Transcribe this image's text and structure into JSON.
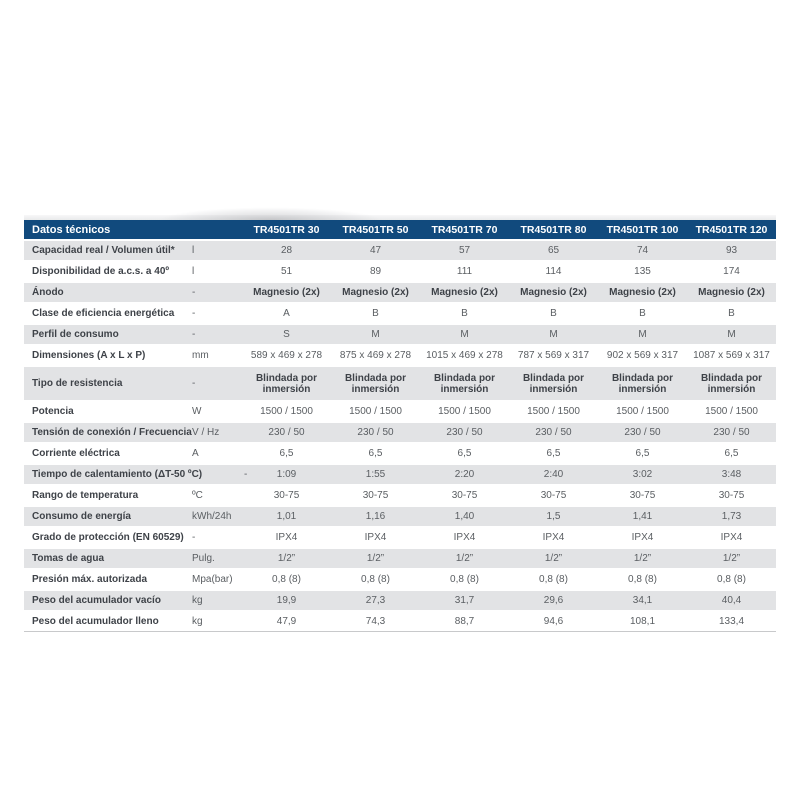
{
  "table": {
    "title": "Datos técnicos",
    "columns": [
      "TR4501TR 30",
      "TR4501TR 50",
      "TR4501TR 70",
      "TR4501TR 80",
      "TR4501TR 100",
      "TR4501TR 120"
    ],
    "colors": {
      "header_bg": "#114a7d",
      "header_text": "#ffffff",
      "stripe": "#e2e3e5",
      "label_text": "#3e4248",
      "value_text": "#5a5e62"
    },
    "rows": [
      {
        "label": "Capacidad real / Volumen útil*",
        "unit": "l",
        "values": [
          "28",
          "47",
          "57",
          "65",
          "74",
          "93"
        ]
      },
      {
        "label": "Disponibilidad de a.c.s. a 40º",
        "unit": "l",
        "values": [
          "51",
          "89",
          "111",
          "114",
          "135",
          "174"
        ]
      },
      {
        "label": "Ánodo",
        "unit": "-",
        "bold_values": true,
        "values": [
          "Magnesio (2x)",
          "Magnesio (2x)",
          "Magnesio (2x)",
          "Magnesio (2x)",
          "Magnesio (2x)",
          "Magnesio (2x)"
        ]
      },
      {
        "label": "Clase de eficiencia energética",
        "unit": "-",
        "values": [
          "A",
          "B",
          "B",
          "B",
          "B",
          "B"
        ]
      },
      {
        "label": "Perfil de consumo",
        "unit": "-",
        "values": [
          "S",
          "M",
          "M",
          "M",
          "M",
          "M"
        ]
      },
      {
        "label": "Dimensiones (A x L x P)",
        "unit": "mm",
        "values": [
          "589 x 469 x 278",
          "875 x 469 x 278",
          "1015 x 469 x 278",
          "787 x 569 x 317",
          "902 x 569 x 317",
          "1087 x 569 x 317"
        ]
      },
      {
        "label": "Tipo de resistencia",
        "unit": "-",
        "bold_values": true,
        "tall": true,
        "values": [
          "Blindada por inmersión",
          "Blindada por inmersión",
          "Blindada por inmersión",
          "Blindada por inmersión",
          "Blindada por inmersión",
          "Blindada por inmersión"
        ]
      },
      {
        "label": "Potencia",
        "unit": "W",
        "values": [
          "1500 / 1500",
          "1500 / 1500",
          "1500 / 1500",
          "1500 / 1500",
          "1500 / 1500",
          "1500 / 1500"
        ]
      },
      {
        "label": "Tensión de conexión / Frecuencia",
        "unit": "V / Hz",
        "values": [
          "230 / 50",
          "230 / 50",
          "230 / 50",
          "230 / 50",
          "230 / 50",
          "230 / 50"
        ]
      },
      {
        "label": "Corriente eléctrica",
        "unit": "A",
        "values": [
          "6,5",
          "6,5",
          "6,5",
          "6,5",
          "6,5",
          "6,5"
        ]
      },
      {
        "label": "Tiempo de calentamiento (ΔT-50 ºC)",
        "unit": "-",
        "long_label": true,
        "values": [
          "1:09",
          "1:55",
          "2:20",
          "2:40",
          "3:02",
          "3:48"
        ]
      },
      {
        "label": "Rango de temperatura",
        "unit": "ºC",
        "values": [
          "30-75",
          "30-75",
          "30-75",
          "30-75",
          "30-75",
          "30-75"
        ]
      },
      {
        "label": "Consumo de energía",
        "unit": "kWh/24h",
        "values": [
          "1,01",
          "1,16",
          "1,40",
          "1,5",
          "1,41",
          "1,73"
        ]
      },
      {
        "label": "Grado de protección (EN 60529)",
        "unit": "-",
        "values": [
          "IPX4",
          "IPX4",
          "IPX4",
          "IPX4",
          "IPX4",
          "IPX4"
        ]
      },
      {
        "label": "Tomas de agua",
        "unit": "Pulg.",
        "values": [
          "1/2”",
          "1/2”",
          "1/2”",
          "1/2”",
          "1/2”",
          "1/2”"
        ]
      },
      {
        "label": "Presión máx. autorizada",
        "unit": "Mpa(bar)",
        "values": [
          "0,8 (8)",
          "0,8 (8)",
          "0,8 (8)",
          "0,8 (8)",
          "0,8 (8)",
          "0,8 (8)"
        ]
      },
      {
        "label": "Peso del acumulador vacío",
        "unit": "kg",
        "values": [
          "19,9",
          "27,3",
          "31,7",
          "29,6",
          "34,1",
          "40,4"
        ]
      },
      {
        "label": "Peso del acumulador lleno",
        "unit": "kg",
        "values": [
          "47,9",
          "74,3",
          "88,7",
          "94,6",
          "108,1",
          "133,4"
        ]
      }
    ]
  }
}
